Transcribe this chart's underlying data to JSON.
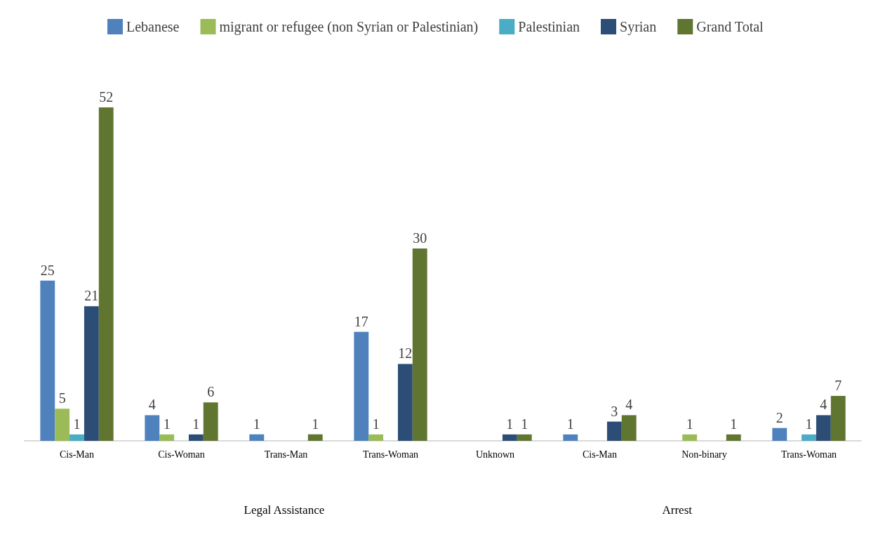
{
  "chart_data": {
    "type": "bar",
    "categories": [
      "Cis-Man",
      "Cis-Woman",
      "Trans-Man",
      "Trans-Woman",
      "Unknown",
      "Cis-Man",
      "Non-binary",
      "Trans-Woman"
    ],
    "series": [
      {
        "name": "Lebanese",
        "color": "#4f81bd",
        "values": [
          25,
          4,
          1,
          17,
          null,
          1,
          null,
          2
        ]
      },
      {
        "name": "migrant or refugee (non Syrian or Palestinian)",
        "color": "#9bbb59",
        "values": [
          5,
          1,
          null,
          1,
          null,
          null,
          1,
          null
        ]
      },
      {
        "name": "Palestinian",
        "color": "#4bacc6",
        "values": [
          1,
          null,
          null,
          null,
          null,
          null,
          null,
          1
        ]
      },
      {
        "name": "Syrian",
        "color": "#2c4d75",
        "values": [
          21,
          1,
          null,
          12,
          1,
          3,
          null,
          4
        ]
      },
      {
        "name": "Grand Total",
        "color": "#5f7530",
        "values": [
          52,
          6,
          1,
          30,
          1,
          4,
          1,
          7
        ]
      }
    ],
    "annotations": [
      "Legal Assistance",
      "Arrest"
    ],
    "data_labels": true,
    "legend": "top"
  }
}
